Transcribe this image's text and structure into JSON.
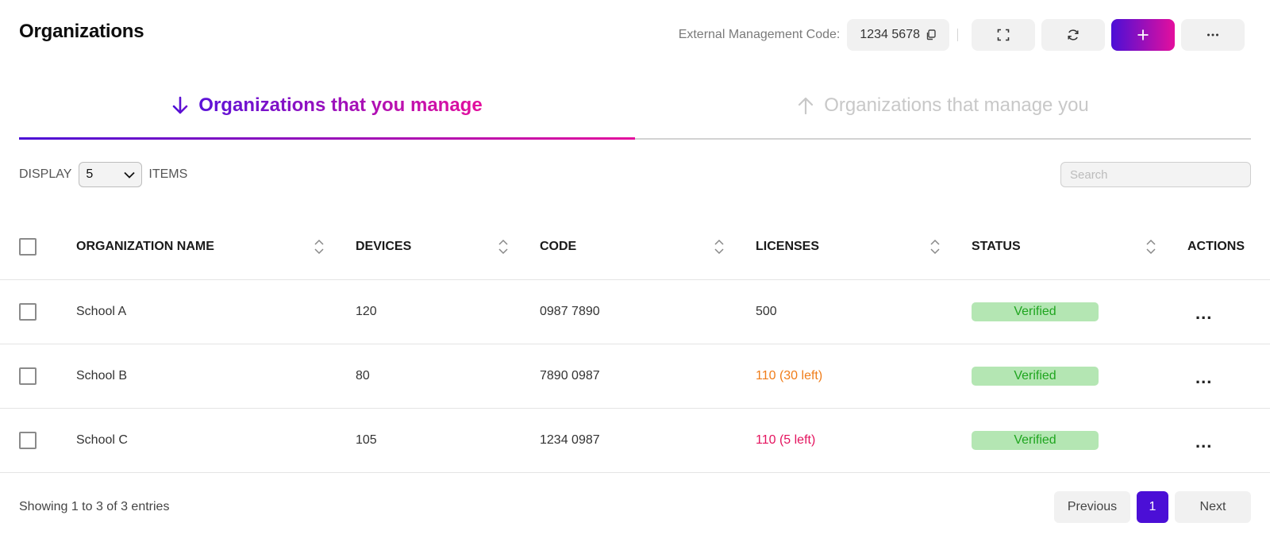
{
  "header": {
    "title": "Organizations",
    "external_code_label": "External Management Code:",
    "external_code_value": "1234 5678"
  },
  "icons": {
    "copy": "copy-icon",
    "expand": "expand-icon",
    "refresh": "refresh-icon",
    "add": "plus-icon",
    "more": "more-horizontal-icon"
  },
  "tabs": [
    {
      "label": "Organizations that you manage",
      "active": true,
      "icon": "arrow-down-icon"
    },
    {
      "label": "Organizations that manage you",
      "active": false,
      "icon": "arrow-up-icon"
    }
  ],
  "display": {
    "prefix": "DISPLAY",
    "selected": "5",
    "suffix": "ITEMS"
  },
  "search": {
    "placeholder": "Search"
  },
  "table": {
    "columns": [
      "ORGANIZATION NAME",
      "DEVICES",
      "CODE",
      "LICENSES",
      "STATUS",
      "ACTIONS"
    ],
    "rows": [
      {
        "name": "School A",
        "devices": "120",
        "code": "0987 7890",
        "licenses": "500",
        "licenses_color": "#333333",
        "status": "Verified",
        "actions": "..."
      },
      {
        "name": "School B",
        "devices": "80",
        "code": "7890 0987",
        "licenses": "110 (30 left)",
        "licenses_color": "#f07d1a",
        "status": "Verified",
        "actions": "..."
      },
      {
        "name": "School C",
        "devices": "105",
        "code": "1234 0987",
        "licenses": "110 (5 left)",
        "licenses_color": "#e4135e",
        "status": "Verified",
        "actions": "..."
      }
    ]
  },
  "footer": {
    "info": "Showing 1 to 3 of 3 entries",
    "previous": "Previous",
    "page": "1",
    "next": "Next"
  },
  "colors": {
    "accent_start": "#4b0fd6",
    "accent_end": "#e40f9d",
    "verified_bg": "#b4e6b3",
    "verified_text": "#1fa51f"
  }
}
